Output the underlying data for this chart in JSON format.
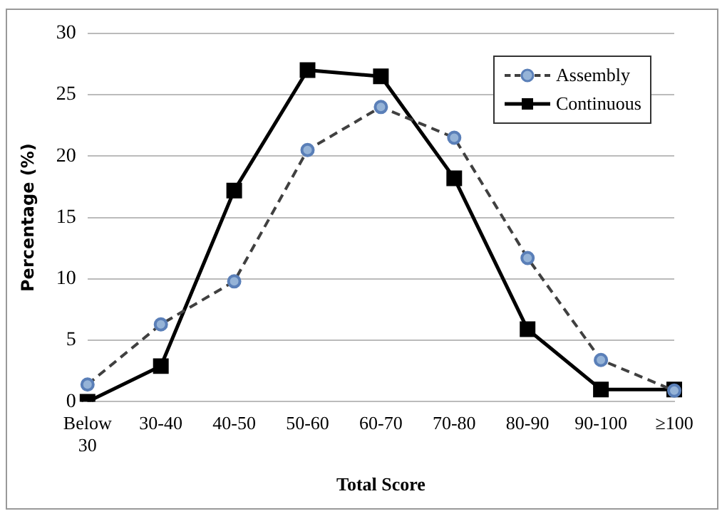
{
  "chart_data": {
    "type": "line",
    "xlabel": "Total Score",
    "ylabel": "Percentage (%)",
    "categories": [
      "Below 30",
      "30-40",
      "40-50",
      "50-60",
      "60-70",
      "70-80",
      "80-90",
      "90-100",
      "≥100"
    ],
    "series": [
      {
        "name": "Assembly",
        "color": "#95b3d7",
        "values": [
          1.4,
          6.3,
          9.8,
          20.5,
          24,
          21.5,
          11.7,
          3.4,
          0.9
        ],
        "marker": "circle",
        "line_style": "dashed"
      },
      {
        "name": "Continuous",
        "color": "#000000",
        "values": [
          0,
          2.9,
          17.2,
          27,
          26.5,
          18.2,
          5.9,
          1,
          1
        ],
        "marker": "square",
        "line_style": "solid"
      }
    ],
    "ylim": [
      0,
      30
    ],
    "yticks": [
      0,
      5,
      10,
      15,
      20,
      25,
      30
    ],
    "grid": "y",
    "legend": "top right"
  }
}
